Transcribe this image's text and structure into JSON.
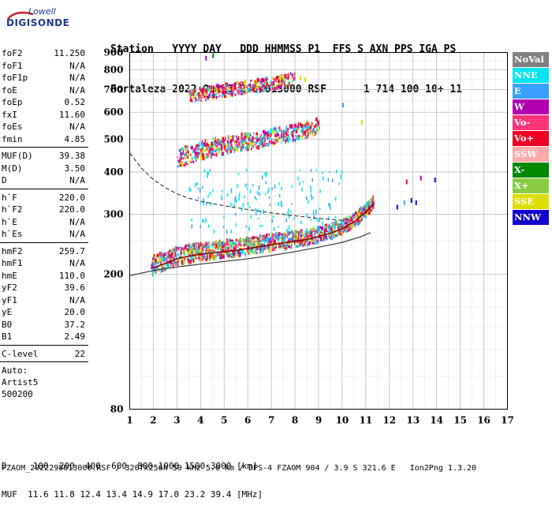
{
  "logo": {
    "top": "Lowell",
    "main": "DIGISONDE"
  },
  "header": {
    "line1": "Station   YYYY DAY   DDD HHMMSS P1  FFS S AXN PPS IGA PS",
    "line2": "Fortaleza 2022 Out25 298 013000 RSF      1 714 100 10+ 11"
  },
  "params_group1": [
    {
      "name": "foF2",
      "value": "11.250"
    },
    {
      "name": "foF1",
      "value": "N/A"
    },
    {
      "name": "foF1p",
      "value": "N/A"
    },
    {
      "name": "foE",
      "value": "N/A"
    },
    {
      "name": "foEp",
      "value": "0.52"
    },
    {
      "name": "fxI",
      "value": "11.60"
    },
    {
      "name": "foEs",
      "value": "N/A"
    },
    {
      "name": "fmin",
      "value": "4.85"
    }
  ],
  "params_group2": [
    {
      "name": "MUF(D)",
      "value": "39.38"
    },
    {
      "name": "M(D)",
      "value": "3.50"
    },
    {
      "name": "D",
      "value": "N/A"
    }
  ],
  "params_group3": [
    {
      "name": "h`F",
      "value": "220.0"
    },
    {
      "name": "h`F2",
      "value": "220.0"
    },
    {
      "name": "h`E",
      "value": "N/A"
    },
    {
      "name": "h`Es",
      "value": "N/A"
    }
  ],
  "params_group4": [
    {
      "name": "hmF2",
      "value": "259.7"
    },
    {
      "name": "hmF1",
      "value": "N/A"
    },
    {
      "name": "hmE",
      "value": "110.0"
    },
    {
      "name": "yF2",
      "value": "39.6"
    },
    {
      "name": "yF1",
      "value": "N/A"
    },
    {
      "name": "yE",
      "value": "20.0"
    },
    {
      "name": "B0",
      "value": "37.2"
    },
    {
      "name": "B1",
      "value": "2.49"
    }
  ],
  "params_group5": [
    {
      "name": "C-level",
      "value": "22"
    }
  ],
  "autoscaler": {
    "line1": "Auto:",
    "line2": "Artist5",
    "line3": "500200"
  },
  "legend": [
    {
      "label": "NoVal",
      "color": "#808080"
    },
    {
      "label": "NNE",
      "color": "#00e5ee"
    },
    {
      "label": "E",
      "color": "#3aa0ff"
    },
    {
      "label": "W",
      "color": "#b000b0"
    },
    {
      "label": "Vo-",
      "color": "#ff3377"
    },
    {
      "label": "Vo+",
      "color": "#ee0022"
    },
    {
      "label": "SSW",
      "color": "#ffaaaa"
    },
    {
      "label": "X-",
      "color": "#008800"
    },
    {
      "label": "X+",
      "color": "#88cc44"
    },
    {
      "label": "SSE",
      "color": "#dddd00"
    },
    {
      "label": "NNW",
      "color": "#1100cc"
    }
  ],
  "footer": {
    "d_line": "D     100  200  400  600  800 1000 1500 3000 [km]",
    "muf_line": "MUF  11.6 11.8 12.4 13.4 14.9 17.0 23.2 39.4 [MHz]",
    "file_line": "FZAOM_2022298013000.RSF / 320fx256h 50 kHz 5.0 km / DPS-4 FZAOM 904 / 3.9 S 321.6 E   Ion2Png 1.3.20"
  },
  "chart_data": {
    "type": "scatter",
    "xlim": [
      1,
      17
    ],
    "ylim": [
      80,
      900
    ],
    "y_scale": "log",
    "x_ticks": [
      "1",
      "2",
      "3",
      "4",
      "5",
      "6",
      "7",
      "8",
      "9",
      "10",
      "11",
      "12",
      "13",
      "14",
      "15",
      "16",
      "17"
    ],
    "y_ticks": [
      "80",
      "200",
      "300",
      "400",
      "500",
      "600",
      "700",
      "800",
      "900"
    ],
    "grid": true,
    "series": [
      {
        "name": "O-trace (1st hop)",
        "x": [
          1.9,
          2.5,
          3.0,
          3.5,
          4.0,
          4.5,
          5.0,
          5.5,
          6.0,
          6.5,
          7.0,
          7.5,
          8.0,
          8.5,
          9.0,
          9.5,
          10.0,
          10.5,
          11.0,
          11.3
        ],
        "y": [
          208,
          215,
          222,
          226,
          229,
          231,
          233,
          235,
          238,
          241,
          244,
          247,
          250,
          253,
          258,
          264,
          272,
          285,
          305,
          320
        ]
      },
      {
        "name": "2nd hop",
        "x": [
          3.0,
          3.5,
          4.0,
          4.5,
          5.0,
          5.5,
          6.0,
          6.5,
          7.0,
          7.5,
          8.0,
          8.5,
          9.0
        ],
        "y": [
          430,
          442,
          455,
          465,
          472,
          478,
          485,
          492,
          500,
          508,
          515,
          525,
          540
        ]
      },
      {
        "name": "3rd hop",
        "x": [
          3.5,
          4.0,
          4.5,
          5.0,
          5.5,
          6.0,
          6.5,
          7.0,
          7.5,
          8.0
        ],
        "y": [
          660,
          668,
          678,
          688,
          695,
          705,
          712,
          722,
          735,
          750
        ]
      },
      {
        "name": "profile (dashed)",
        "x": [
          1.0,
          1.5,
          2.0,
          2.5,
          3.0,
          3.5,
          4.0,
          5.0,
          6.0,
          7.0,
          8.0,
          9.0,
          10.0
        ],
        "y": [
          455,
          410,
          380,
          360,
          345,
          335,
          328,
          318,
          310,
          303,
          297,
          292,
          288
        ]
      },
      {
        "name": "profile (solid)",
        "x": [
          1.0,
          2.0,
          3.0,
          4.0,
          5.0,
          6.0,
          7.0,
          8.0,
          9.0,
          10.0,
          10.8,
          11.2
        ],
        "y": [
          198,
          205,
          210,
          214,
          218,
          222,
          227,
          233,
          240,
          248,
          258,
          265
        ]
      }
    ]
  }
}
